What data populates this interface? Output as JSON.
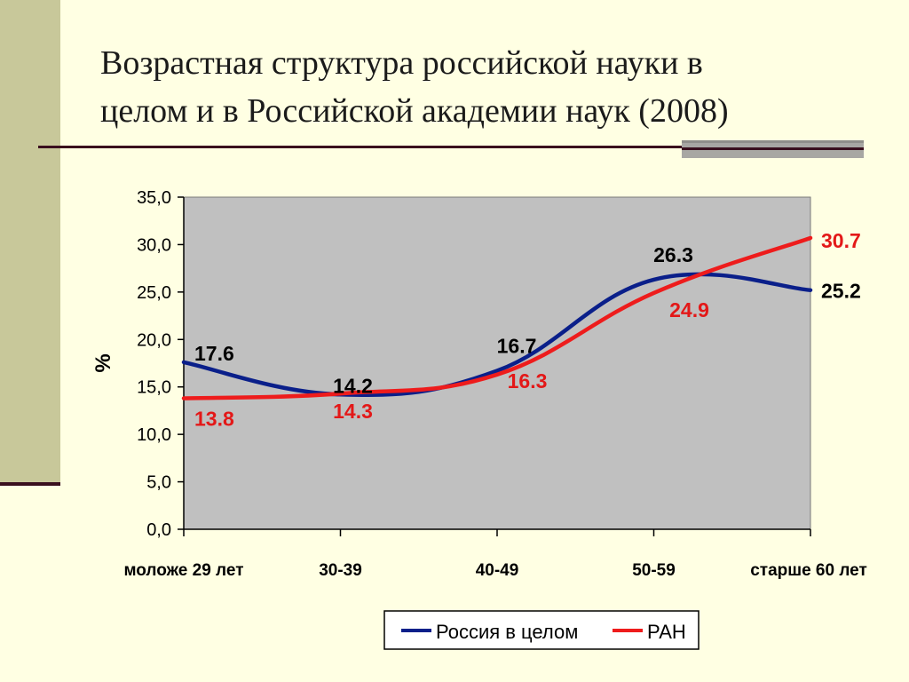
{
  "slide": {
    "title_line1": "Возрастная структура российской науки в",
    "title_line2": "целом и в Российской академии наук (2008)"
  },
  "chart_data": {
    "type": "line",
    "categories": [
      "моложе 29 лет",
      "30-39",
      "40-49",
      "50-59",
      "старше 60 лет"
    ],
    "ylabel": "%",
    "ylim": [
      0,
      35
    ],
    "yticks": [
      "0,0",
      "5,0",
      "10,0",
      "15,0",
      "20,0",
      "25,0",
      "30,0",
      "35,0"
    ],
    "grid": false,
    "plot_background": "#c0c0c0",
    "legend_position": "bottom",
    "series": [
      {
        "name": "Россия в целом",
        "color": "#0a1f8a",
        "values": [
          17.6,
          14.2,
          16.7,
          26.3,
          25.2
        ],
        "labels": [
          "17.6",
          "14.2",
          "16.7",
          "26.3",
          "25.2"
        ],
        "label_color": "#000000"
      },
      {
        "name": "РАН",
        "color": "#ee1c1c",
        "values": [
          13.8,
          14.3,
          16.3,
          24.9,
          30.7
        ],
        "labels": [
          "13.8",
          "14.3",
          "16.3",
          "24.9",
          "30.7"
        ],
        "label_color": "#e31818"
      }
    ]
  }
}
